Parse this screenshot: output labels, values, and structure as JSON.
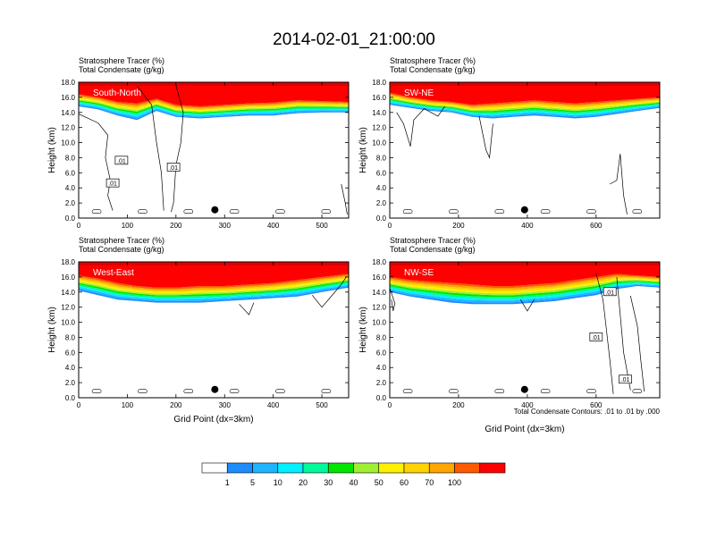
{
  "figure": {
    "title": "2014-02-01_21:00:00",
    "contour_note": "Total Condensate Contours: .01 to .01 by .000"
  },
  "colorbar": {
    "colors": [
      "#ffffff",
      "#1e8cff",
      "#1fb4ff",
      "#00f0ff",
      "#00fa9a",
      "#00e600",
      "#a0f032",
      "#fff000",
      "#ffd200",
      "#ffa500",
      "#ff5a00",
      "#ff0000"
    ],
    "labels": [
      "1",
      "5",
      "10",
      "20",
      "30",
      "40",
      "50",
      "60",
      "70",
      "100"
    ]
  },
  "chart_data": [
    {
      "type": "heatmap",
      "panel_label": "South-North",
      "header1": "Stratosphere Tracer   (%)",
      "header2": "Total Condensate   (g/kg)",
      "ylabel": "Height (km)",
      "xlabel": "",
      "xlim": [
        0,
        555
      ],
      "ylim": [
        0,
        18
      ],
      "xticks": [
        0,
        100,
        200,
        300,
        400,
        500
      ],
      "yticks": [
        "0.0",
        "2.0",
        "4.0",
        "6.0",
        "8.0",
        "10.0",
        "12.0",
        "14.0",
        "16.0",
        "18.0"
      ],
      "surface_point": [
        280,
        1.1
      ],
      "contour_labels": [
        {
          "x": 88,
          "y": 7.6,
          "text": ".01"
        },
        {
          "x": 70,
          "y": 4.6,
          "text": ".01"
        },
        {
          "x": 195,
          "y": 6.7,
          "text": ".01"
        }
      ],
      "tracer_profile": {
        "x": [
          0,
          40,
          80,
          120,
          160,
          200,
          250,
          300,
          350,
          400,
          450,
          500,
          555
        ],
        "top_of_high_values_km": [
          16.4,
          16.0,
          15.4,
          15.2,
          15.8,
          15.0,
          14.8,
          15.0,
          15.2,
          15.3,
          15.6,
          15.5,
          15.4
        ],
        "base_of_1pct_km": [
          14.8,
          14.4,
          13.6,
          13.0,
          14.2,
          13.4,
          13.2,
          13.4,
          13.6,
          13.6,
          13.9,
          14.0,
          14.0
        ]
      }
    },
    {
      "type": "heatmap",
      "panel_label": "SW-NE",
      "header1": "Stratosphere Tracer   (%)",
      "header2": "Total Condensate   (g/kg)",
      "ylabel": "Height (km)",
      "xlabel": "",
      "xlim": [
        0,
        785
      ],
      "ylim": [
        0,
        18
      ],
      "xticks": [
        0,
        200,
        400,
        600
      ],
      "yticks": [
        "0.0",
        "2.0",
        "4.0",
        "6.0",
        "8.0",
        "10.0",
        "12.0",
        "14.0",
        "16.0",
        "18.0"
      ],
      "surface_point": [
        392,
        1.1
      ],
      "contour_labels": [],
      "tracer_profile": {
        "x": [
          0,
          60,
          120,
          180,
          240,
          300,
          360,
          420,
          480,
          540,
          600,
          660,
          720,
          785
        ],
        "top_of_high_values_km": [
          16.6,
          16.0,
          15.6,
          15.4,
          15.0,
          15.2,
          15.4,
          15.6,
          15.4,
          15.2,
          15.4,
          15.6,
          15.8,
          16.0
        ],
        "base_of_1pct_km": [
          15.0,
          14.6,
          14.2,
          14.0,
          13.4,
          13.2,
          13.4,
          13.6,
          13.4,
          13.2,
          13.4,
          13.8,
          14.2,
          14.6
        ]
      }
    },
    {
      "type": "heatmap",
      "panel_label": "West-East",
      "header1": "Stratosphere Tracer   (%)",
      "header2": "Total Condensate   (g/kg)",
      "ylabel": "Height (km)",
      "xlabel": "Grid Point (dx=3km)",
      "xlim": [
        0,
        555
      ],
      "ylim": [
        0,
        18
      ],
      "xticks": [
        0,
        100,
        200,
        300,
        400,
        500
      ],
      "yticks": [
        "0.0",
        "2.0",
        "4.0",
        "6.0",
        "8.0",
        "10.0",
        "12.0",
        "14.0",
        "16.0",
        "18.0"
      ],
      "surface_point": [
        280,
        1.1
      ],
      "contour_labels": [],
      "tracer_profile": {
        "x": [
          0,
          40,
          80,
          120,
          160,
          200,
          250,
          300,
          350,
          400,
          450,
          500,
          555
        ],
        "top_of_high_values_km": [
          16.2,
          15.8,
          15.2,
          14.8,
          14.6,
          14.6,
          14.8,
          14.8,
          15.0,
          15.2,
          15.6,
          16.0,
          16.4
        ],
        "base_of_1pct_km": [
          14.2,
          13.6,
          13.0,
          12.8,
          12.6,
          12.6,
          12.6,
          12.8,
          13.0,
          13.2,
          13.4,
          14.0,
          14.6
        ]
      }
    },
    {
      "type": "heatmap",
      "panel_label": "NW-SE",
      "header1": "Stratosphere Tracer   (%)",
      "header2": "Total Condensate   (g/kg)",
      "ylabel": "Height (km)",
      "xlabel": "Grid Point (dx=3km)",
      "xlim": [
        0,
        785
      ],
      "ylim": [
        0,
        18
      ],
      "xticks": [
        0,
        200,
        400,
        600
      ],
      "yticks": [
        "0.0",
        "2.0",
        "4.0",
        "6.0",
        "8.0",
        "10.0",
        "12.0",
        "14.0",
        "16.0",
        "18.0"
      ],
      "surface_point": [
        392,
        1.1
      ],
      "contour_labels": [
        {
          "x": 640,
          "y": 14.0,
          "text": ".01"
        },
        {
          "x": 600,
          "y": 8.0,
          "text": ".01"
        },
        {
          "x": 685,
          "y": 2.4,
          "text": ".01"
        }
      ],
      "tracer_profile": {
        "x": [
          0,
          60,
          120,
          180,
          240,
          300,
          360,
          420,
          480,
          540,
          600,
          660,
          720,
          785
        ],
        "top_of_high_values_km": [
          16.0,
          15.6,
          15.4,
          15.2,
          15.0,
          14.8,
          14.8,
          15.0,
          15.2,
          15.6,
          16.0,
          16.4,
          16.2,
          16.0
        ],
        "base_of_1pct_km": [
          14.0,
          13.4,
          13.0,
          12.6,
          12.4,
          12.4,
          12.4,
          12.6,
          12.8,
          13.2,
          13.6,
          14.4,
          14.8,
          14.6
        ]
      }
    }
  ]
}
